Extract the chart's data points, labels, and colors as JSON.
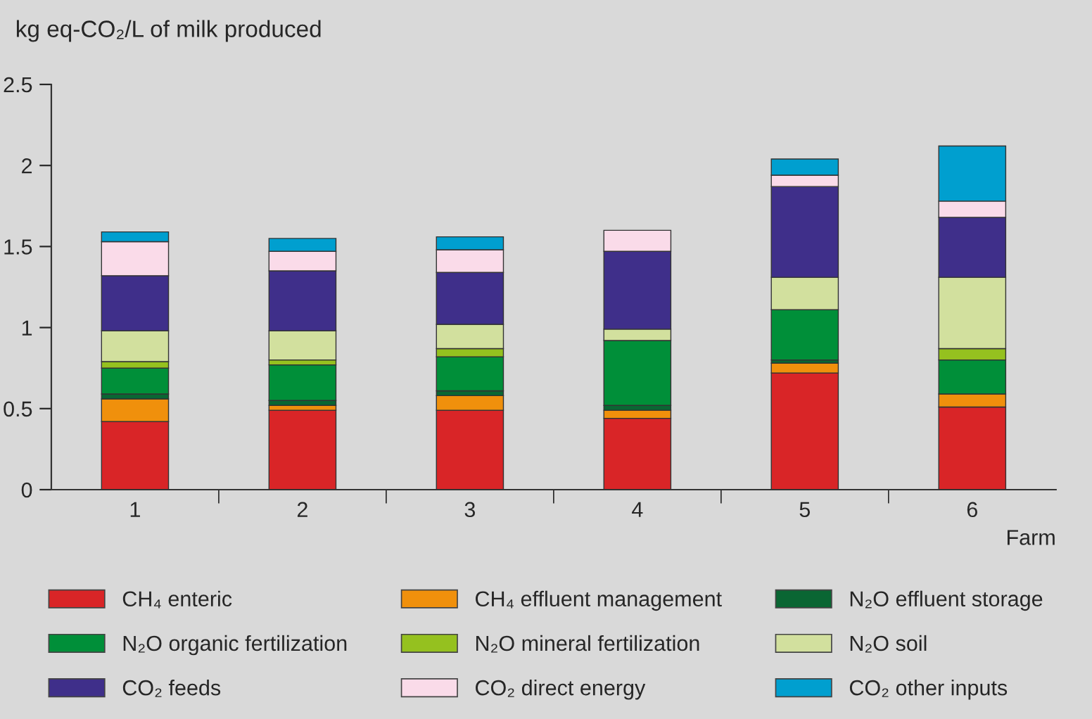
{
  "chart_data": {
    "type": "bar",
    "stacked": true,
    "ylabel": "kg eq-CO₂/L of milk produced",
    "xlabel": "Farm",
    "categories": [
      "1",
      "2",
      "3",
      "4",
      "5",
      "6"
    ],
    "series": [
      {
        "name": "CH₄ enteric",
        "color": "#d92527",
        "values": [
          0.42,
          0.49,
          0.49,
          0.44,
          0.72,
          0.51
        ]
      },
      {
        "name": "CH₄ effluent management",
        "color": "#f0900c",
        "values": [
          0.14,
          0.03,
          0.09,
          0.05,
          0.06,
          0.08
        ]
      },
      {
        "name": "N₂O effluent storage",
        "color": "#0a6633",
        "values": [
          0.03,
          0.03,
          0.03,
          0.03,
          0.02,
          0
        ]
      },
      {
        "name": "N₂O organic fertilization",
        "color": "#008f39",
        "values": [
          0.16,
          0.22,
          0.21,
          0.4,
          0.31,
          0.21
        ]
      },
      {
        "name": "N₂O mineral fertilization",
        "color": "#95c11f",
        "values": [
          0.04,
          0.03,
          0.05,
          0,
          0,
          0.07
        ]
      },
      {
        "name": "N₂O soil",
        "color": "#d2e09e",
        "values": [
          0.19,
          0.18,
          0.15,
          0.07,
          0.2,
          0.44
        ]
      },
      {
        "name": "CO₂ feeds",
        "color": "#3f2f8a",
        "values": [
          0.34,
          0.37,
          0.32,
          0.48,
          0.56,
          0.37
        ]
      },
      {
        "name": "CO₂ direct energy",
        "color": "#fadbe9",
        "values": [
          0.21,
          0.12,
          0.14,
          0.13,
          0.07,
          0.1
        ]
      },
      {
        "name": "CO₂ other inputs",
        "color": "#009fcf",
        "values": [
          0.06,
          0.08,
          0.08,
          0,
          0.1,
          0.34
        ]
      }
    ],
    "ylim": [
      0,
      2.5
    ],
    "yticks": [
      0,
      0.5,
      1,
      1.5,
      2,
      2.5
    ],
    "grid": false,
    "legend": "bottom"
  }
}
